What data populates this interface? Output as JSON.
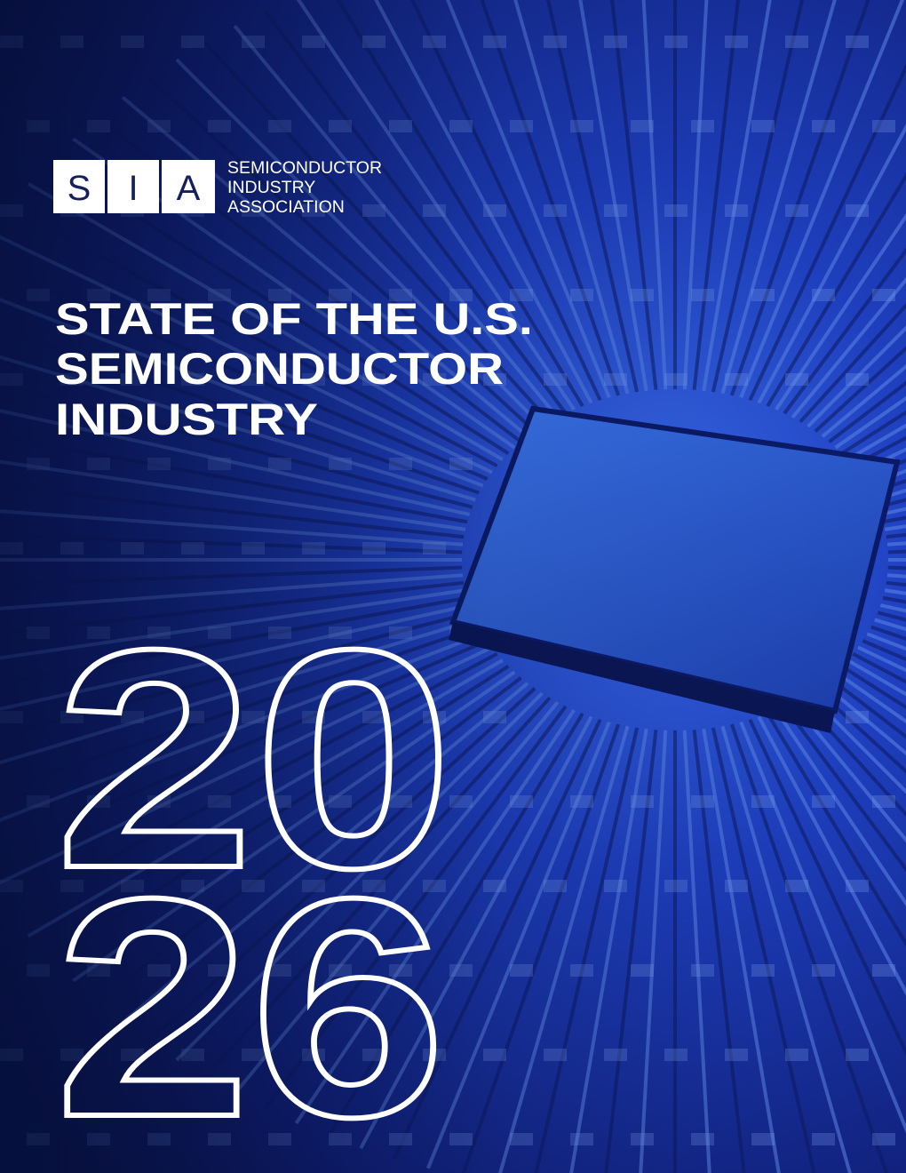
{
  "logo": {
    "letters": [
      "S",
      "I",
      "A"
    ],
    "name_lines": [
      "SEMICONDUCTOR",
      "INDUSTRY",
      "ASSOCIATION"
    ]
  },
  "title": {
    "lines": [
      "STATE OF THE U.S.",
      "SEMICONDUCTOR",
      "INDUSTRY"
    ]
  },
  "year": {
    "lines": [
      "20",
      "26"
    ]
  }
}
